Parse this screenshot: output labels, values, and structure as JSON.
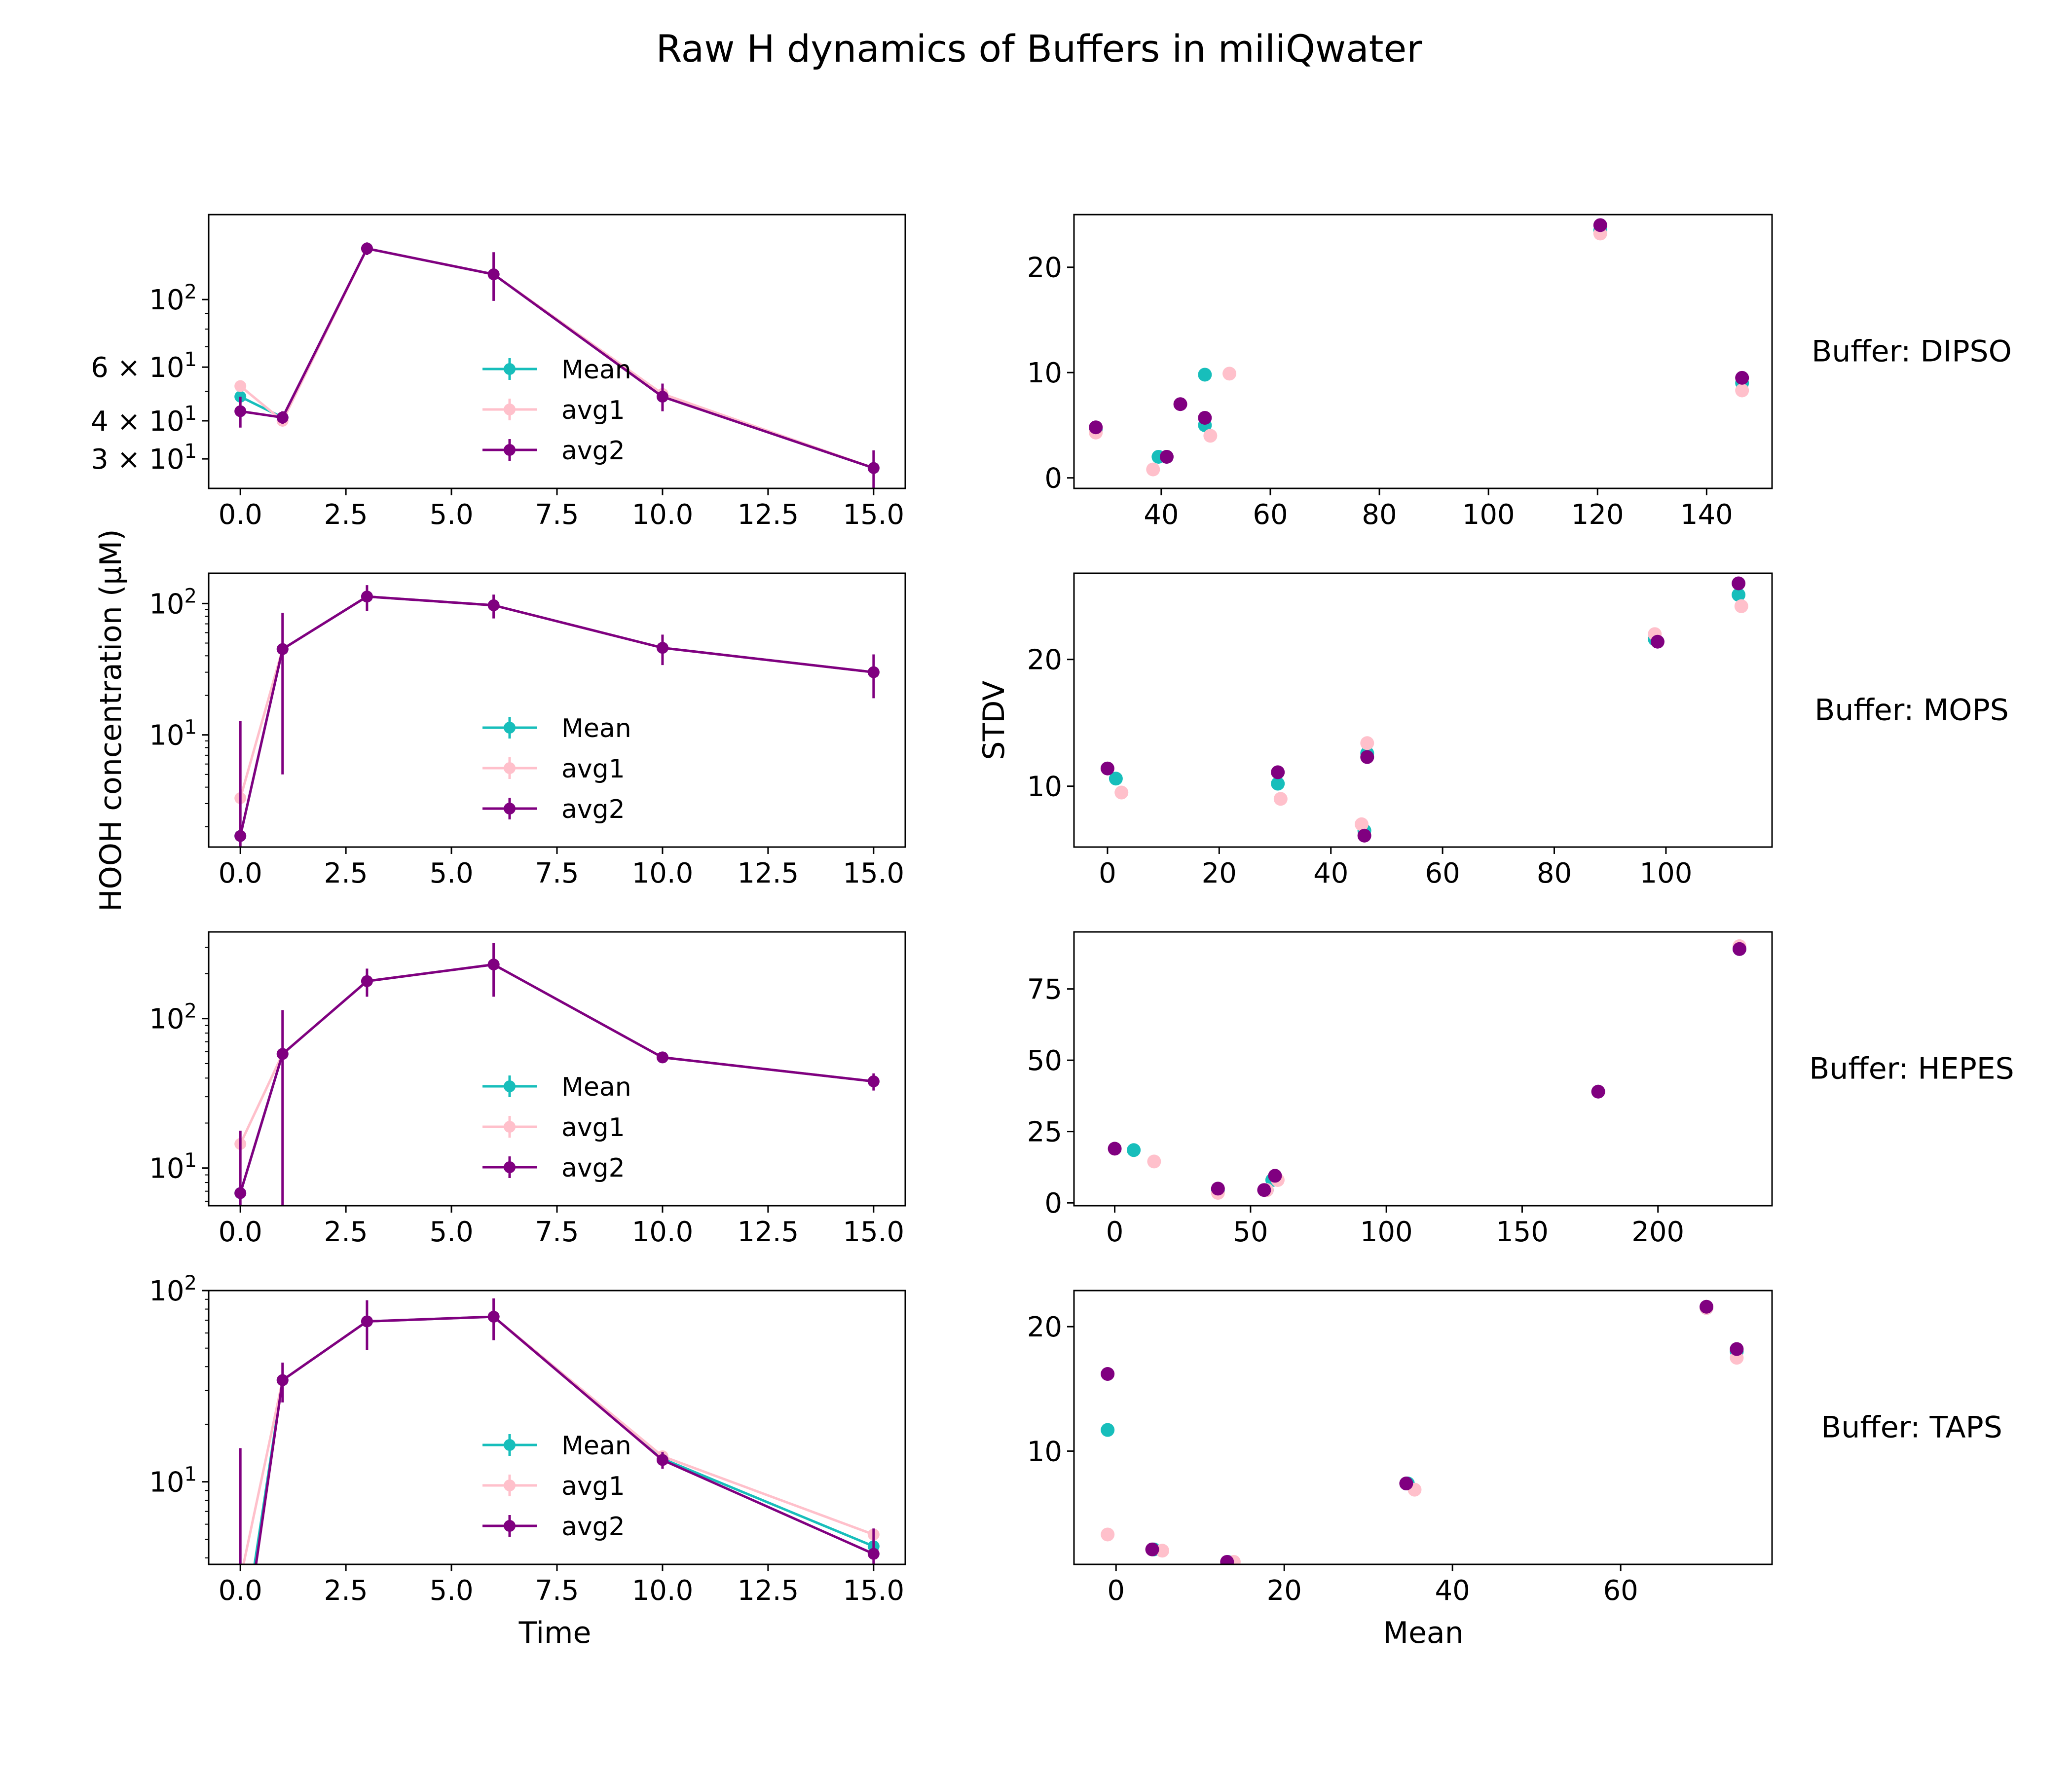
{
  "figure": {
    "title": "Raw H dynamics of Buffers in miliQwater",
    "ylabel_left": "HOOH concentration (µM)",
    "xlabel_left": "Time",
    "ylabel_right": "STDV",
    "xlabel_right": "Mean"
  },
  "colors": {
    "Mean": "#17bebb",
    "avg1": "#ffc0cb",
    "avg2": "#800080"
  },
  "chart_data": [
    {
      "type": "line",
      "panel": "time-DIPSO",
      "yscale": "log",
      "xlim": [
        -0.75,
        15.75
      ],
      "ylim": [
        24,
        190
      ],
      "xticks": [
        "0.0",
        "2.5",
        "5.0",
        "7.5",
        "10.0",
        "12.5",
        "15.0"
      ],
      "yticks": [
        "3 × 10^1",
        "4 × 10^1",
        "6 × 10^1",
        "10^2"
      ],
      "legend": [
        "Mean",
        "avg1",
        "avg2"
      ],
      "series": [
        {
          "name": "Mean",
          "x": [
            0,
            1,
            3,
            6,
            10,
            15
          ],
          "y": [
            48,
            41,
            147,
            121,
            48,
            28
          ]
        },
        {
          "name": "avg1",
          "x": [
            0,
            1,
            3,
            6,
            10,
            15
          ],
          "y": [
            52,
            40,
            147,
            121,
            49,
            28
          ]
        },
        {
          "name": "avg2",
          "x": [
            0,
            1,
            3,
            6,
            10,
            15
          ],
          "y": [
            43,
            41,
            147,
            121,
            48,
            28
          ],
          "err": [
            5,
            2,
            7,
            22,
            5,
            4
          ]
        }
      ]
    },
    {
      "type": "scatter",
      "panel": "stdv-DIPSO",
      "xlim": [
        24,
        152
      ],
      "ylim": [
        -1,
        25
      ],
      "xticks": [
        "40",
        "60",
        "80",
        "100",
        "120",
        "140"
      ],
      "yticks": [
        "0",
        "10",
        "20"
      ],
      "row_label": "Buffer: DIPSO",
      "series": [
        {
          "name": "Mean",
          "x": [
            28,
            39.5,
            41,
            48,
            48,
            120.5,
            146.5
          ],
          "y": [
            4.5,
            2,
            2,
            9.8,
            5,
            23.5,
            9
          ]
        },
        {
          "name": "avg1",
          "x": [
            28,
            38.5,
            41,
            52.5,
            49,
            120.5,
            146.5
          ],
          "y": [
            4.3,
            0.8,
            2,
            9.9,
            4,
            23.2,
            8.3
          ]
        },
        {
          "name": "avg2",
          "x": [
            28,
            41,
            43.5,
            48,
            120.5,
            146.5
          ],
          "y": [
            4.8,
            2,
            7,
            5.7,
            24,
            9.5
          ]
        }
      ]
    },
    {
      "type": "line",
      "panel": "time-MOPS",
      "yscale": "log",
      "xlim": [
        -0.75,
        15.75
      ],
      "ylim": [
        1.4,
        170
      ],
      "xticks": [
        "0.0",
        "2.5",
        "5.0",
        "7.5",
        "10.0",
        "12.5",
        "15.0"
      ],
      "yticks": [
        "10^1",
        "10^2"
      ],
      "legend": [
        "Mean",
        "avg1",
        "avg2"
      ],
      "series": [
        {
          "name": "Mean",
          "x": [
            0,
            1,
            3,
            6,
            10,
            15
          ],
          "y": [
            1.7,
            45,
            113,
            97,
            46,
            30
          ]
        },
        {
          "name": "avg1",
          "x": [
            0,
            1,
            3,
            6,
            10,
            15
          ],
          "y": [
            3.3,
            45,
            113,
            97,
            46,
            30
          ]
        },
        {
          "name": "avg2",
          "x": [
            0,
            1,
            3,
            6,
            10,
            15
          ],
          "y": [
            1.7,
            45,
            113,
            97,
            46,
            30
          ],
          "err": [
            11,
            40,
            25,
            20,
            12,
            11
          ]
        }
      ]
    },
    {
      "type": "scatter",
      "panel": "stdv-MOPS",
      "xlim": [
        -6,
        119
      ],
      "ylim": [
        5.2,
        26.8
      ],
      "xticks": [
        "0",
        "20",
        "40",
        "60",
        "80",
        "100"
      ],
      "yticks": [
        "10",
        "20"
      ],
      "row_label": "Buffer: MOPS",
      "series": [
        {
          "name": "Mean",
          "x": [
            1.5,
            30.5,
            46,
            46.5,
            98,
            113
          ],
          "y": [
            10.6,
            10.2,
            6.5,
            12.6,
            21.6,
            25.1
          ]
        },
        {
          "name": "avg1",
          "x": [
            2.5,
            31,
            45.5,
            46.5,
            98,
            113.5
          ],
          "y": [
            9.5,
            9,
            7,
            13.4,
            22,
            24.2
          ]
        },
        {
          "name": "avg2",
          "x": [
            0,
            30.5,
            46,
            46.5,
            98.5,
            113
          ],
          "y": [
            11.4,
            11.1,
            6.1,
            12.3,
            21.4,
            26
          ]
        }
      ]
    },
    {
      "type": "line",
      "panel": "time-HEPES",
      "yscale": "log",
      "xlim": [
        -0.75,
        15.75
      ],
      "ylim": [
        5.6,
        380
      ],
      "xticks": [
        "0.0",
        "2.5",
        "5.0",
        "7.5",
        "10.0",
        "12.5",
        "15.0"
      ],
      "yticks": [
        "10^1",
        "10^2"
      ],
      "legend": [
        "Mean",
        "avg1",
        "avg2"
      ],
      "series": [
        {
          "name": "Mean",
          "x": [
            0,
            1,
            3,
            6,
            10,
            15
          ],
          "y": [
            6.8,
            58,
            178,
            230,
            55,
            38
          ]
        },
        {
          "name": "avg1",
          "x": [
            0,
            1,
            3,
            6,
            10,
            15
          ],
          "y": [
            14.5,
            58,
            178,
            230,
            55,
            38
          ]
        },
        {
          "name": "avg2",
          "x": [
            0,
            1,
            3,
            6,
            10,
            15
          ],
          "y": [
            6.8,
            58,
            178,
            230,
            55,
            38
          ],
          "err": [
            11,
            56,
            38,
            90,
            4,
            5
          ]
        }
      ]
    },
    {
      "type": "scatter",
      "panel": "stdv-HEPES",
      "xlim": [
        -15,
        242
      ],
      "ylim": [
        -1,
        95
      ],
      "xticks": [
        "0",
        "50",
        "100",
        "150",
        "200"
      ],
      "yticks": [
        "0",
        "25",
        "50",
        "75"
      ],
      "row_label": "Buffer: HEPES",
      "series": [
        {
          "name": "Mean",
          "x": [
            7,
            38,
            56,
            58,
            178,
            230
          ],
          "y": [
            18.5,
            4,
            4.5,
            8,
            39,
            89
          ]
        },
        {
          "name": "avg1",
          "x": [
            14.5,
            38,
            56,
            60,
            178,
            230
          ],
          "y": [
            14.5,
            3.5,
            4.5,
            8,
            39,
            90
          ]
        },
        {
          "name": "avg2",
          "x": [
            0,
            38,
            55,
            59,
            178,
            230
          ],
          "y": [
            19,
            5,
            4.5,
            9.5,
            39,
            89
          ]
        }
      ]
    },
    {
      "type": "line",
      "panel": "time-TAPS",
      "yscale": "log",
      "xlim": [
        -0.75,
        15.75
      ],
      "ylim": [
        3.7,
        100
      ],
      "xticks": [
        "0.0",
        "2.5",
        "5.0",
        "7.5",
        "10.0",
        "12.5",
        "15.0"
      ],
      "yticks": [
        "10^1",
        "10^2"
      ],
      "legend": [
        "Mean",
        "avg1",
        "avg2"
      ],
      "series": [
        {
          "name": "Mean",
          "x": [
            0,
            1,
            3,
            6,
            10,
            15
          ],
          "y": [
            1.2,
            34,
            69,
            73,
            13.2,
            4.6
          ]
        },
        {
          "name": "avg1",
          "x": [
            0,
            1,
            3,
            6,
            10,
            15
          ],
          "y": [
            3.1,
            34,
            69,
            73,
            13.6,
            5.3
          ]
        },
        {
          "name": "avg2",
          "x": [
            0,
            1,
            3,
            6,
            10,
            15
          ],
          "y": [
            1.0,
            34,
            69,
            73,
            13,
            4.2
          ],
          "err": [
            14,
            8,
            20,
            18,
            1.3,
            1.5
          ]
        }
      ]
    },
    {
      "type": "scatter",
      "panel": "stdv-TAPS",
      "xlim": [
        -5,
        78
      ],
      "ylim": [
        0.9,
        22.9
      ],
      "xticks": [
        "0",
        "20",
        "40",
        "60"
      ],
      "yticks": [
        "10",
        "20"
      ],
      "row_label": "Buffer: TAPS",
      "series": [
        {
          "name": "Mean",
          "x": [
            -1,
            4.5,
            13.3,
            34.7,
            70.2,
            73.8
          ],
          "y": [
            11.7,
            2.1,
            1.1,
            7.4,
            21.5,
            18
          ]
        },
        {
          "name": "avg1",
          "x": [
            -1,
            5.5,
            14,
            35.5,
            70.2,
            73.8
          ],
          "y": [
            3.3,
            2,
            1.1,
            6.9,
            21.5,
            17.5
          ]
        },
        {
          "name": "avg2",
          "x": [
            -1,
            4.3,
            13.2,
            34.5,
            70.2,
            73.8
          ],
          "y": [
            16.2,
            2.1,
            1.1,
            7.4,
            21.6,
            18.2
          ]
        }
      ]
    }
  ]
}
